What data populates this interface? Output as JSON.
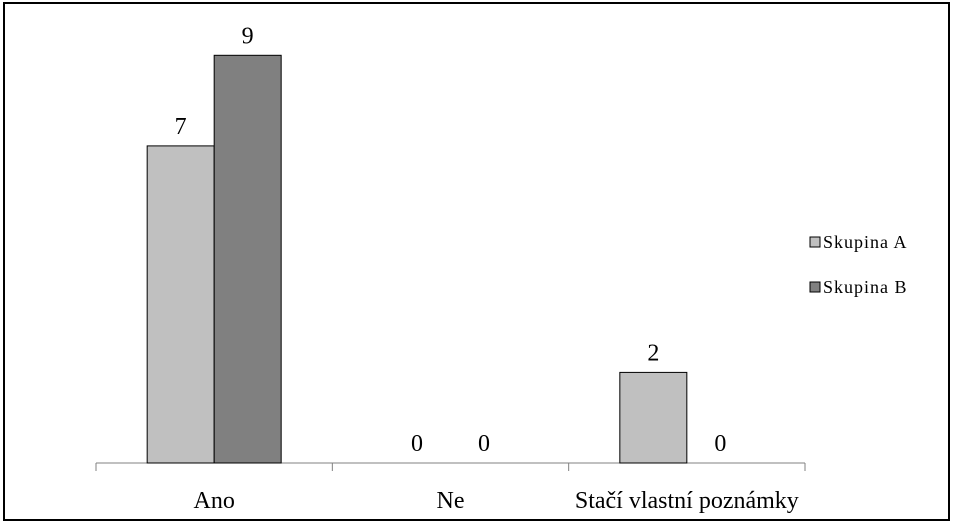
{
  "chart_data": {
    "type": "bar",
    "title": "",
    "xlabel": "",
    "ylabel": "",
    "categories": [
      "Ano",
      "Ne",
      "Stačí vlastní poznámky"
    ],
    "series": [
      {
        "name": "Skupina A",
        "values": [
          7,
          0,
          2
        ],
        "color": "#c0c0c0"
      },
      {
        "name": "Skupina B",
        "values": [
          9,
          0,
          0
        ],
        "color": "#808080"
      }
    ],
    "ylim": [
      0,
      10
    ],
    "grid": false,
    "y_axis_visible": false,
    "data_labels": true,
    "legend_position": "right",
    "bar_stroke_color": "#000000",
    "axis_color": "#808080"
  }
}
